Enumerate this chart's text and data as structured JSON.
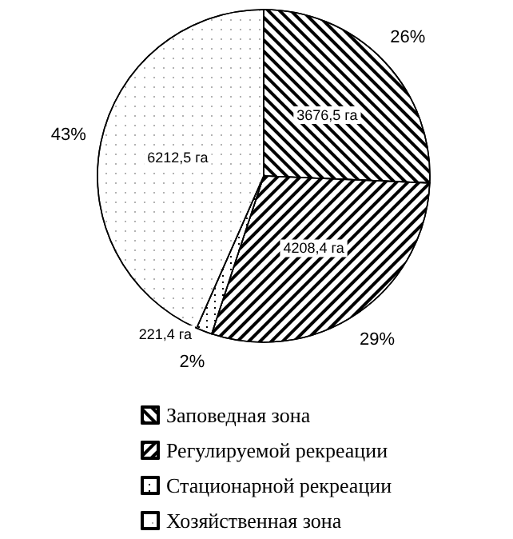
{
  "chart_data": {
    "type": "pie",
    "categories": [
      "Заповедная зона",
      "Регулируемой рекреации",
      "Стационарной рекреации",
      "Хозяйственная зона"
    ],
    "values": [
      3676.5,
      4208.4,
      221.4,
      6212.5
    ],
    "colors": [
      "#ffffff",
      "#ffffff",
      "#ffffff",
      "#ffffff"
    ],
    "value_labels": [
      "3676,5 га",
      "4208,4 га",
      "221,4 га",
      "6212,5 га"
    ],
    "annotations": [
      "26%",
      "29%",
      "2%",
      "43%"
    ],
    "legend": "bottom"
  }
}
